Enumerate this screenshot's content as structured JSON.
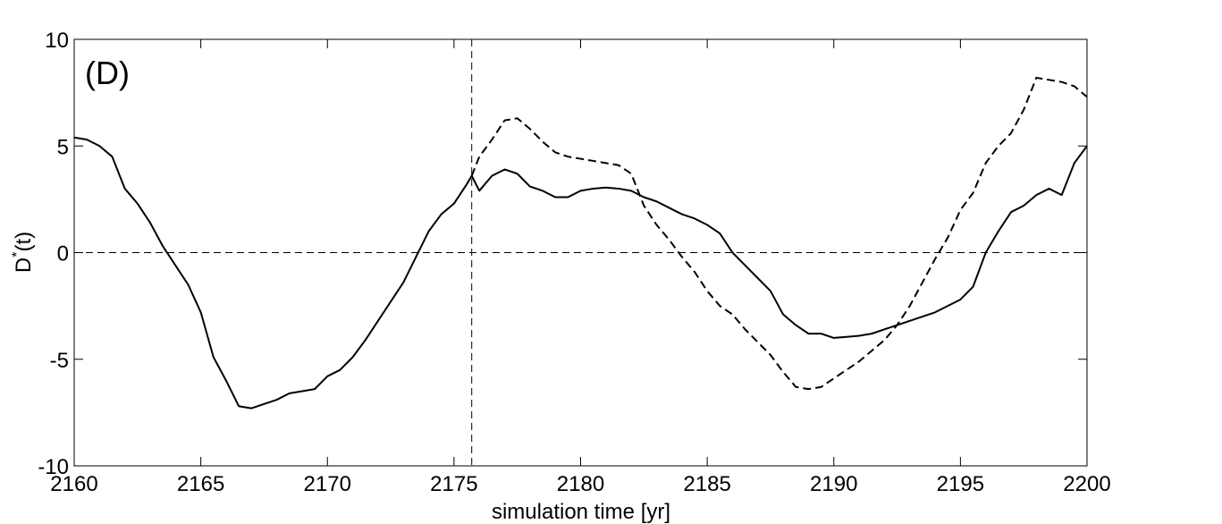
{
  "chart_data": {
    "type": "line",
    "annotation": "(D)",
    "xlabel": "simulation time [yr]",
    "ylabel": [
      "D",
      "*",
      "(t)"
    ],
    "xlim": [
      2160,
      2200
    ],
    "ylim": [
      -10,
      10
    ],
    "xticks": [
      2160,
      2165,
      2170,
      2175,
      2180,
      2185,
      2190,
      2195,
      2200
    ],
    "yticks": [
      -10,
      -5,
      0,
      5,
      10
    ],
    "hline": 0,
    "vline": 2175.7,
    "x": [
      2160,
      2160.5,
      2161,
      2161.5,
      2162,
      2162.5,
      2163,
      2163.5,
      2164,
      2164.5,
      2165,
      2165.5,
      2166,
      2166.5,
      2167,
      2167.5,
      2168,
      2168.5,
      2169,
      2169.5,
      2170,
      2170.5,
      2171,
      2171.5,
      2172,
      2172.5,
      2173,
      2173.5,
      2174,
      2174.5,
      2175,
      2175.5,
      2175.7,
      2176,
      2176.5,
      2177,
      2177.5,
      2178,
      2178.5,
      2179,
      2179.5,
      2180,
      2180.5,
      2181,
      2181.5,
      2182,
      2182.5,
      2183,
      2183.5,
      2184,
      2184.5,
      2185,
      2185.5,
      2186,
      2186.5,
      2187,
      2187.5,
      2188,
      2188.5,
      2189,
      2189.5,
      2190,
      2190.5,
      2191,
      2191.5,
      2192,
      2192.5,
      2193,
      2193.5,
      2194,
      2194.5,
      2195,
      2195.5,
      2196,
      2196.5,
      2197,
      2197.5,
      2198,
      2198.5,
      2199,
      2199.5,
      2200
    ],
    "series": [
      {
        "color": "#000000",
        "dash": "solid",
        "values": [
          5.4,
          5.3,
          5.0,
          4.5,
          3.0,
          2.3,
          1.4,
          0.3,
          -0.6,
          -1.5,
          -2.8,
          -4.9,
          -6.0,
          -7.2,
          -7.3,
          -7.1,
          -6.9,
          -6.6,
          -6.5,
          -6.4,
          -5.8,
          -5.5,
          -4.9,
          -4.1,
          -3.2,
          -2.3,
          -1.4,
          -0.2,
          1.0,
          1.8,
          2.3,
          3.2,
          3.6,
          2.9,
          3.6,
          3.9,
          3.7,
          3.1,
          2.9,
          2.6,
          2.6,
          2.9,
          3.0,
          3.05,
          3.0,
          2.9,
          2.6,
          2.4,
          2.1,
          1.8,
          1.6,
          1.3,
          0.9,
          0.0,
          -0.6,
          -1.2,
          -1.8,
          -2.9,
          -3.4,
          -3.8,
          -3.8,
          -4.0,
          -3.95,
          -3.9,
          -3.8,
          -3.6,
          -3.4,
          -3.2,
          -3.0,
          -2.8,
          -2.5,
          -2.2,
          -1.6,
          0.0,
          1.0,
          1.9,
          2.2,
          2.7,
          3.0,
          2.7,
          4.2,
          5.0
        ]
      },
      {
        "color": "#000000",
        "dash": "dashed",
        "values": [
          null,
          null,
          null,
          null,
          null,
          null,
          null,
          null,
          null,
          null,
          null,
          null,
          null,
          null,
          null,
          null,
          null,
          null,
          null,
          null,
          null,
          null,
          null,
          null,
          null,
          null,
          null,
          null,
          null,
          null,
          null,
          null,
          3.6,
          4.5,
          5.3,
          6.2,
          6.3,
          5.8,
          5.2,
          4.7,
          4.5,
          4.4,
          4.3,
          4.2,
          4.1,
          3.7,
          2.2,
          1.3,
          0.6,
          -0.2,
          -0.9,
          -1.8,
          -2.5,
          -2.9,
          -3.6,
          -4.2,
          -4.8,
          -5.6,
          -6.3,
          -6.4,
          -6.3,
          -5.9,
          -5.5,
          -5.1,
          -4.6,
          -4.1,
          -3.4,
          -2.5,
          -1.4,
          -0.3,
          0.7,
          2.0,
          2.8,
          4.2,
          5.0,
          5.6,
          6.7,
          8.2,
          8.1,
          8.0,
          7.8,
          7.3
        ]
      }
    ]
  }
}
